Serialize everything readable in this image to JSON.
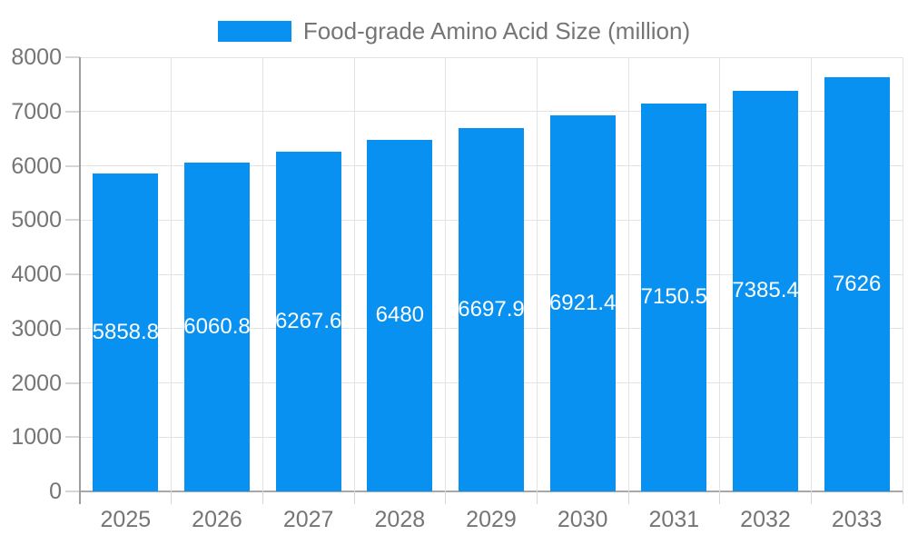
{
  "legend": {
    "label": "Food-grade Amino Acid Size (million)",
    "swatch_color": "#0991f2"
  },
  "chart_data": {
    "type": "bar",
    "title": "Food-grade Amino Acid Size (million)",
    "categories": [
      "2025",
      "2026",
      "2027",
      "2028",
      "2029",
      "2030",
      "2031",
      "2032",
      "2033"
    ],
    "values": [
      5858.8,
      6060.8,
      6267.6,
      6480,
      6697.9,
      6921.4,
      7150.5,
      7385.4,
      7626
    ],
    "xlabel": "",
    "ylabel": "",
    "ylim": [
      0,
      8000
    ],
    "ytick_interval": 1000,
    "grid": true,
    "legend_position": "top-center",
    "bar_color": "#0991f2",
    "bar_label_color": "#ffffff",
    "axis_text_color": "#757575",
    "gridline_color": "#e3e3e3",
    "axis_line_color": "#9e9e9e"
  }
}
